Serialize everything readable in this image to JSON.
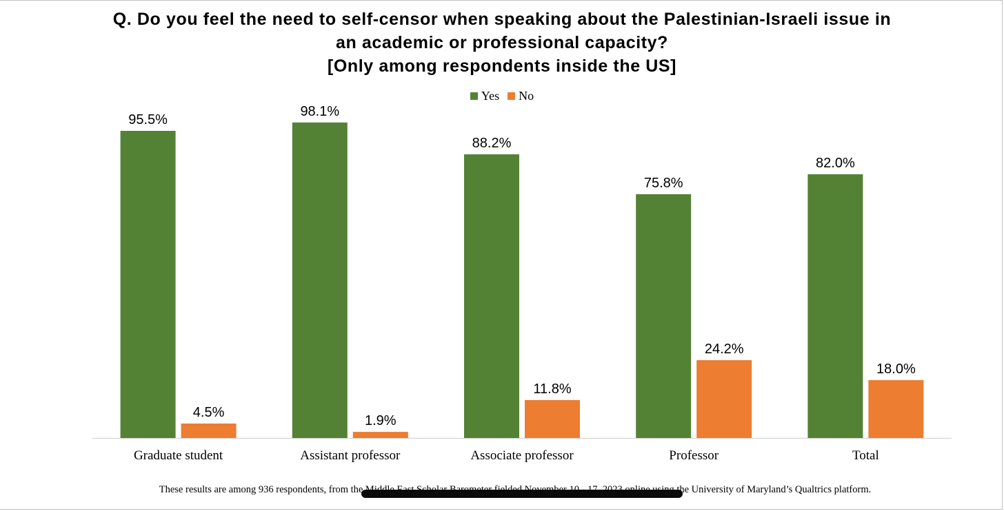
{
  "title_lines": [
    "Q. Do you feel the need to self-censor when speaking about the Palestinian-Israeli issue in",
    "an academic or professional capacity?",
    "[Only among respondents inside the US]"
  ],
  "footnote": "These results are among 936 respondents, from the Middle East Scholar Barometer fielded November 10 - 17, 2023 online using the University of Maryland’s Qualtrics platform.",
  "colors": {
    "yes": "#548235",
    "no": "#ED7D31",
    "axis": "#d9d9d9"
  },
  "chart_data": {
    "type": "bar",
    "categories": [
      "Graduate student",
      "Assistant professor",
      "Associate professor",
      "Professor",
      "Total"
    ],
    "series": [
      {
        "name": "Yes",
        "values": [
          95.5,
          98.1,
          88.2,
          75.8,
          82.0
        ],
        "labels": [
          "95.5%",
          "98.1%",
          "88.2%",
          "75.8%",
          "82.0%"
        ]
      },
      {
        "name": "No",
        "values": [
          4.5,
          1.9,
          11.8,
          24.2,
          18.0
        ],
        "labels": [
          "4.5%",
          "1.9%",
          "11.8%",
          "24.2%",
          "18.0%"
        ]
      }
    ],
    "ylim": [
      0,
      100
    ],
    "grid": false,
    "legend": "top-center",
    "xlabel": "",
    "ylabel": ""
  }
}
